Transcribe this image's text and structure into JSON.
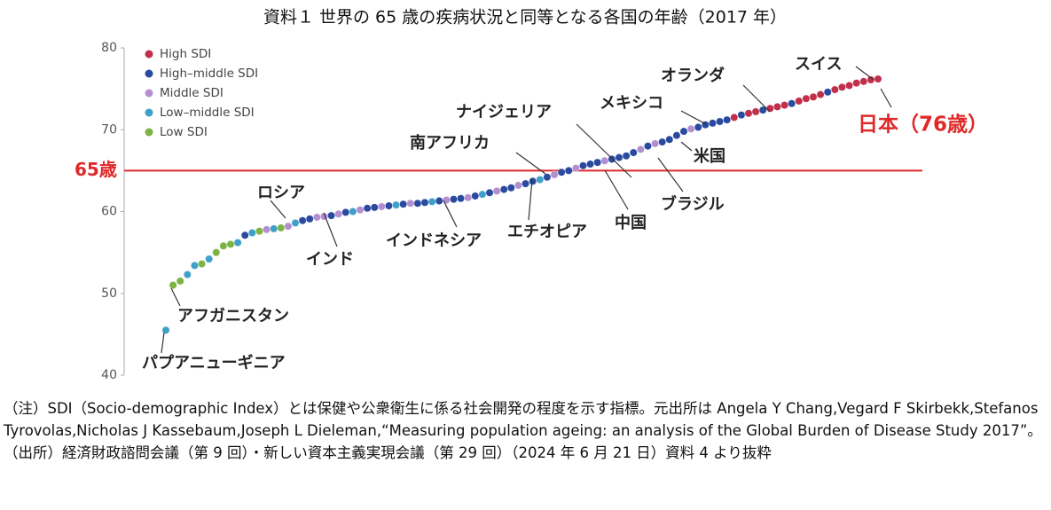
{
  "chart_data": {
    "type": "scatter",
    "title": "資料１ 世界の 65 歳の疾病状況と同等となる各国の年齢（2017 年）",
    "xlim": [
      1,
      100
    ],
    "ylim": [
      40,
      80
    ],
    "yticks": [
      40,
      50,
      60,
      70,
      80
    ],
    "legend": "upper left",
    "series": [
      {
        "name": "High SDI",
        "color": "#c0304a",
        "x": [
          80,
          82,
          83,
          85,
          86,
          87,
          89,
          90,
          91,
          92,
          94,
          95,
          96,
          97,
          98,
          99,
          100
        ],
        "values": [
          71.5,
          72.0,
          72.2,
          72.6,
          72.8,
          73.0,
          73.5,
          73.8,
          74.0,
          74.3,
          74.9,
          75.2,
          75.4,
          75.7,
          75.9,
          76.1,
          76.2
        ]
      },
      {
        "name": "High–middle SDI",
        "color": "#2a4aa0",
        "x": [
          12,
          20,
          21,
          24,
          26,
          29,
          30,
          32,
          34,
          36,
          37,
          39,
          41,
          42,
          44,
          46,
          48,
          49,
          51,
          52,
          54,
          56,
          57,
          59,
          60,
          61,
          63,
          64,
          65,
          66,
          68,
          70,
          71,
          72,
          73,
          75,
          76,
          77,
          78,
          79,
          81,
          84,
          88,
          93
        ],
        "values": [
          57.1,
          58.9,
          59.1,
          59.5,
          59.9,
          60.4,
          60.5,
          60.7,
          60.9,
          61.0,
          61.1,
          61.3,
          61.5,
          61.6,
          61.9,
          62.3,
          62.7,
          62.9,
          63.4,
          63.7,
          64.2,
          64.8,
          65.0,
          65.6,
          65.8,
          66.0,
          66.4,
          66.6,
          66.8,
          67.2,
          68.0,
          68.5,
          68.8,
          69.3,
          69.8,
          70.3,
          70.6,
          70.8,
          71.0,
          71.2,
          71.8,
          72.4,
          73.2,
          74.6
        ]
      },
      {
        "name": "Middle SDI",
        "color": "#b48fd0",
        "x": [
          15,
          18,
          22,
          23,
          25,
          28,
          31,
          35,
          40,
          43,
          47,
          50,
          55,
          58,
          62,
          67,
          69,
          74
        ],
        "values": [
          57.8,
          58.2,
          59.3,
          59.4,
          59.7,
          60.2,
          60.6,
          61.0,
          61.4,
          61.7,
          62.5,
          63.2,
          64.5,
          65.3,
          66.2,
          67.6,
          68.3,
          70.1
        ]
      },
      {
        "name": "Low–middle SDI",
        "color": "#3fa0c8",
        "x": [
          1,
          4,
          5,
          7,
          11,
          13,
          16,
          19,
          27,
          33,
          38,
          45,
          53
        ],
        "values": [
          45.5,
          52.3,
          53.4,
          54.2,
          56.2,
          57.4,
          57.9,
          58.6,
          60.0,
          60.8,
          61.2,
          62.1,
          63.9
        ]
      },
      {
        "name": "Low SDI",
        "color": "#7cb342",
        "x": [
          2,
          3,
          6,
          8,
          9,
          10,
          14,
          17
        ],
        "values": [
          51.0,
          51.5,
          53.6,
          55.0,
          55.8,
          56.0,
          57.6,
          58.0
        ]
      }
    ],
    "reference_line": {
      "value": 65,
      "label": "65歳",
      "color": "#e02828"
    },
    "annotations": [
      "パプアニューギニア",
      "アフガニスタン",
      "ロシア",
      "インド",
      "インドネシア",
      "エチオピア",
      "南アフリカ",
      "ナイジェリア",
      "中国",
      "ブラジル",
      "米国",
      "メキシコ",
      "オランダ",
      "スイス",
      "日本（76歳）"
    ],
    "notes": [
      "（注）SDI（Socio-demographic Index）とは保健や公衆衛生に係る社会開発の程度を示す指標。元出所は Angela Y Chang,Vegard F Skirbekk,Stefanos Tyrovolas,Nicholas J Kassebaum,Joseph L Dieleman,“Measuring population ageing: an analysis of the Global Burden of Disease Study 2017”。",
      "（出所）経済財政諮問会議（第 9 回）・新しい資本主義実現会議（第 29 回）（2024 年 6 月 21 日）資料 4 より抜粋"
    ]
  }
}
